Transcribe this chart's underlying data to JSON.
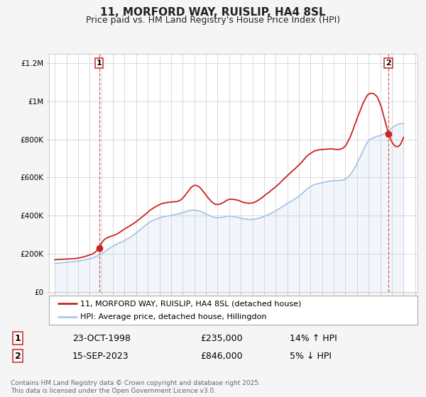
{
  "title1": "11, MORFORD WAY, RUISLIP, HA4 8SL",
  "title2": "Price paid vs. HM Land Registry's House Price Index (HPI)",
  "background_color": "#f5f5f5",
  "plot_bg_color": "#ffffff",
  "grid_color": "#cccccc",
  "hpi_color": "#a8c8e8",
  "price_color": "#cc2222",
  "sale1_date_x": 1998.81,
  "sale1_price": 235000,
  "sale1_label": "1",
  "sale2_date_x": 2023.71,
  "sale2_price": 846000,
  "sale2_label": "2",
  "vline_color": "#cc4444",
  "marker_color": "#cc2222",
  "ylim": [
    0,
    1250000
  ],
  "xlim": [
    1994.5,
    2026.2
  ],
  "yticks": [
    0,
    200000,
    400000,
    600000,
    800000,
    1000000,
    1200000
  ],
  "ytick_labels": [
    "£0",
    "£200K",
    "£400K",
    "£600K",
    "£800K",
    "£1M",
    "£1.2M"
  ],
  "legend_label_red": "11, MORFORD WAY, RUISLIP, HA4 8SL (detached house)",
  "legend_label_blue": "HPI: Average price, detached house, Hillingdon",
  "table_row1": [
    "1",
    "23-OCT-1998",
    "£235,000",
    "14% ↑ HPI"
  ],
  "table_row2": [
    "2",
    "15-SEP-2023",
    "£846,000",
    "5% ↓ HPI"
  ],
  "footer_text": "Contains HM Land Registry data © Crown copyright and database right 2025.\nThis data is licensed under the Open Government Licence v3.0.",
  "title1_fontsize": 11,
  "title2_fontsize": 9,
  "tick_fontsize": 7.5,
  "legend_fontsize": 8,
  "table_fontsize": 9,
  "footer_fontsize": 6.5
}
